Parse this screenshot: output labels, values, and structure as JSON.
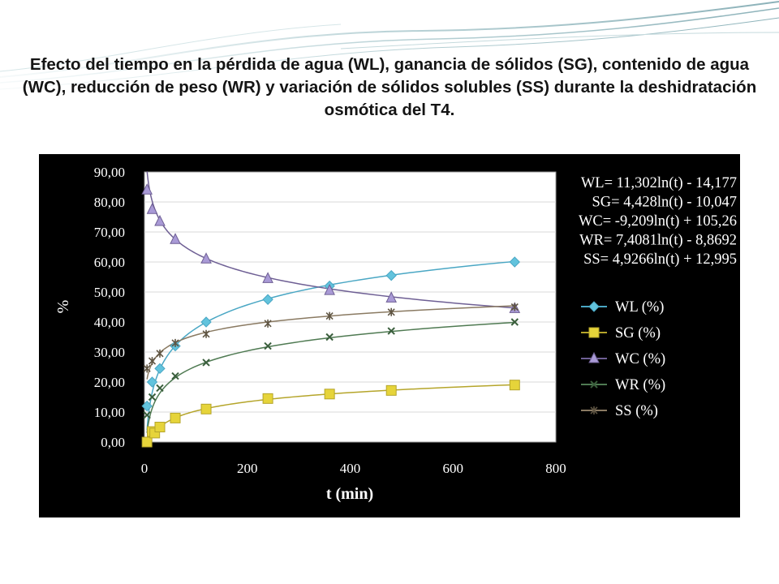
{
  "slide": {
    "title": "Efecto del tiempo en la pérdida de agua (WL), ganancia de sólidos (SG), contenido de agua (WC), reducción de peso (WR) y variación de sólidos solubles (SS) durante la deshidratación osmótica del T4."
  },
  "chart_data": {
    "type": "scatter",
    "title": "",
    "xlabel": "t (min)",
    "ylabel": "%",
    "xlim": [
      0,
      800
    ],
    "ylim": [
      0,
      90
    ],
    "x_ticks": [
      "0",
      "200",
      "400",
      "600",
      "800"
    ],
    "y_ticks": [
      "0,00",
      "10,00",
      "20,00",
      "30,00",
      "40,00",
      "50,00",
      "60,00",
      "70,00",
      "80,00",
      "90,00"
    ],
    "legend_position": "right",
    "background": "#000000",
    "plot_area_color": "#ffffff",
    "equations": [
      "WL= 11,302ln(t) - 14,177",
      "SG= 4,428ln(t) - 10,047",
      "WC= -9,209ln(t) + 105,26",
      "WR= 7,4081ln(t) - 8,8692",
      "SS= 4,9266ln(t) + 12,995"
    ],
    "series": [
      {
        "name": "WL (%)",
        "marker": "diamond",
        "color": "#4aa7c4",
        "marker_color": "#62c3dd",
        "trend": {
          "type": "log",
          "a": 11.302,
          "b": -14.177
        },
        "points": [
          [
            5,
            12
          ],
          [
            15,
            20
          ],
          [
            30,
            24.5
          ],
          [
            60,
            32
          ],
          [
            120,
            40
          ],
          [
            240,
            47.5
          ],
          [
            360,
            52
          ],
          [
            480,
            55.5
          ],
          [
            720,
            60
          ]
        ]
      },
      {
        "name": "SG (%)",
        "marker": "square",
        "color": "#b5a52a",
        "marker_color": "#e6d43a",
        "trend": {
          "type": "log",
          "a": 4.428,
          "b": -10.047
        },
        "points": [
          [
            5,
            0
          ],
          [
            15,
            3.5
          ],
          [
            20,
            3
          ],
          [
            30,
            5
          ],
          [
            60,
            8
          ],
          [
            120,
            11
          ],
          [
            240,
            14.5
          ],
          [
            360,
            16
          ],
          [
            480,
            17.2
          ],
          [
            720,
            19
          ]
        ]
      },
      {
        "name": "WC (%)",
        "marker": "triangle",
        "color": "#6e5f94",
        "marker_color": "#a99ad6",
        "trend": {
          "type": "log",
          "a": -9.209,
          "b": 105.26
        },
        "points": [
          [
            5,
            84
          ],
          [
            15,
            77.5
          ],
          [
            30,
            73.5
          ],
          [
            60,
            67.5
          ],
          [
            120,
            61
          ],
          [
            240,
            54.5
          ],
          [
            360,
            50.5
          ],
          [
            480,
            48
          ],
          [
            720,
            44.5
          ]
        ]
      },
      {
        "name": "WR (%)",
        "marker": "x",
        "color": "#4f7a52",
        "marker_color": "#3a5e3c",
        "trend": {
          "type": "log",
          "a": 7.4081,
          "b": -8.8692
        },
        "points": [
          [
            5,
            9
          ],
          [
            15,
            15
          ],
          [
            30,
            18
          ],
          [
            60,
            22
          ],
          [
            120,
            26.5
          ],
          [
            240,
            32
          ],
          [
            360,
            35
          ],
          [
            480,
            37
          ],
          [
            720,
            40
          ]
        ]
      },
      {
        "name": "SS (%)",
        "marker": "star",
        "color": "#8a7a62",
        "marker_color": "#5f5543",
        "trend": {
          "type": "log",
          "a": 4.9266,
          "b": 12.995
        },
        "points": [
          [
            5,
            24.5
          ],
          [
            15,
            27
          ],
          [
            30,
            29.5
          ],
          [
            60,
            33
          ],
          [
            120,
            36
          ],
          [
            240,
            39.5
          ],
          [
            360,
            42
          ],
          [
            480,
            43.3
          ],
          [
            720,
            45
          ]
        ]
      }
    ]
  }
}
